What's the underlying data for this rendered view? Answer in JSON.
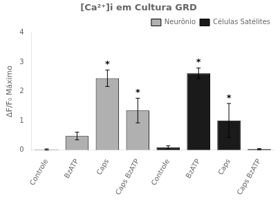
{
  "chart_data": {
    "type": "bar",
    "title": "[Ca²⁺]i em Cultura GRD",
    "ylabel": "ΔF/F₀ Máximo",
    "categories": [
      "Controle",
      "BzATP",
      "Caps",
      "Caps BzATP",
      "Controle",
      "BzATP",
      "Caps",
      "Caps BzATP"
    ],
    "series": [
      {
        "name": "Neurônio",
        "color": "#b0b0b0",
        "values": [
          0.02,
          0.48,
          2.45,
          1.35,
          null,
          null,
          null,
          null
        ],
        "errors": [
          0.02,
          0.13,
          0.28,
          0.42,
          null,
          null,
          null,
          null
        ],
        "significance": [
          false,
          false,
          true,
          true,
          null,
          null,
          null,
          null
        ]
      },
      {
        "name": "Células Satélites",
        "color": "#1a1a1a",
        "values": [
          null,
          null,
          null,
          null,
          0.1,
          2.62,
          1.01,
          0.03
        ],
        "errors": [
          null,
          null,
          null,
          null,
          0.05,
          0.18,
          0.58,
          0.02
        ],
        "significance": [
          null,
          null,
          null,
          null,
          false,
          true,
          true,
          false
        ]
      }
    ],
    "significance_label": "*",
    "ylim": [
      0,
      4
    ],
    "yticks": [
      0,
      1,
      2,
      3,
      4
    ],
    "grid": false,
    "legend": "upper right"
  }
}
